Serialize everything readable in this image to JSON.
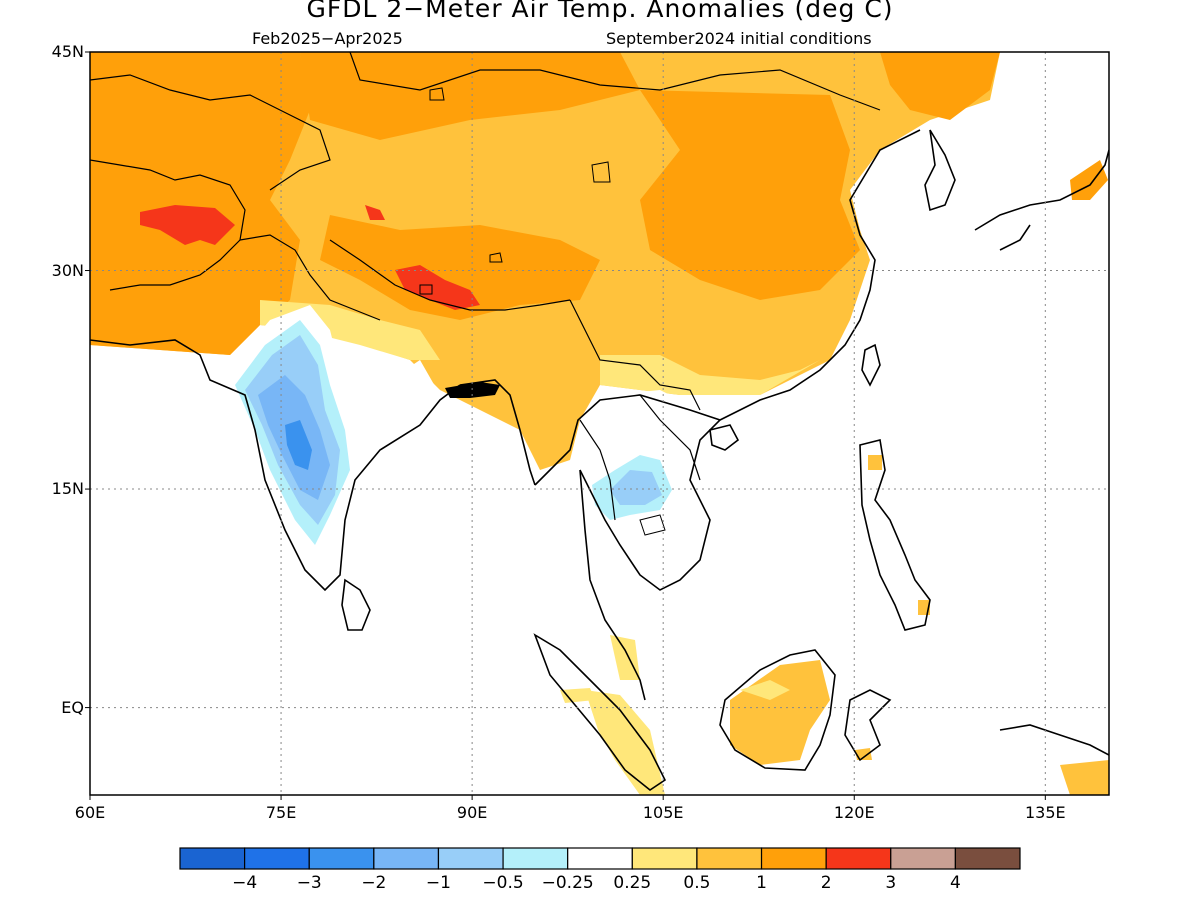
{
  "title": "GFDL 2−Meter Air Temp. Anomalies (deg C)",
  "subtitle_left": "Feb2025−Apr2025",
  "subtitle_right": "September2024 initial conditions",
  "map": {
    "lon_range": [
      60,
      140
    ],
    "lat_range": [
      -6,
      45
    ],
    "lat_ticks": [
      "45N",
      "30N",
      "15N",
      "EQ"
    ],
    "lon_ticks": [
      "60E",
      "75E",
      "90E",
      "105E",
      "120E",
      "135E"
    ],
    "grid_lines": "dotted"
  },
  "legend": {
    "labels": [
      "−4",
      "−3",
      "−2",
      "−1",
      "−0.5",
      "−0.25",
      "0.25",
      "0.5",
      "1",
      "2",
      "3",
      "4"
    ],
    "colors": [
      "#1a64d2",
      "#1f72e8",
      "#3a92ee",
      "#78b6f6",
      "#98cef8",
      "#b4f0fa",
      "#ffffff",
      "#ffe77a",
      "#ffc23c",
      "#ffa00a",
      "#f5361a",
      "#c9a094",
      "#7a4e3e"
    ]
  },
  "colors": {
    "warm_light": "#ffe77a",
    "warm": "#ffc23c",
    "warm_strong": "#ffa00a",
    "hot": "#f5361a",
    "cool_light": "#b4f0fa",
    "cool": "#98cef8",
    "cool_mid": "#78b6f6",
    "cool_strong": "#3a92ee"
  }
}
